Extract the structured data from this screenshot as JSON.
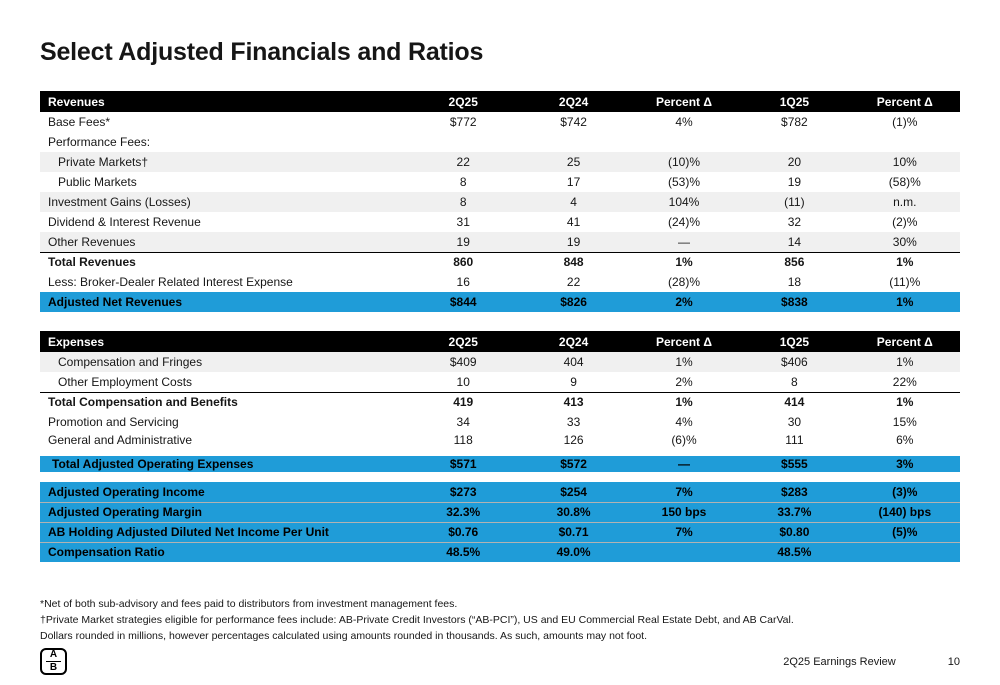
{
  "title": "Select Adjusted Financials and Ratios",
  "colors": {
    "accent_blue": "#1f9cd8",
    "header_black": "#000000",
    "row_shade": "#f0f0f0"
  },
  "tables": {
    "revenues": {
      "headers": [
        "Revenues",
        "2Q25",
        "2Q24",
        "Percent Δ",
        "1Q25",
        "Percent Δ"
      ],
      "rows": [
        {
          "label": "Base Fees*",
          "values": [
            "$772",
            "$742",
            "4%",
            "$782",
            "(1)%"
          ],
          "style": ""
        },
        {
          "label": "Performance Fees:",
          "values": [
            "",
            "",
            "",
            "",
            ""
          ],
          "style": ""
        },
        {
          "label": "Private Markets†",
          "values": [
            "22",
            "25",
            "(10)%",
            "20",
            "10%"
          ],
          "style": "indent shaded"
        },
        {
          "label": "Public Markets",
          "values": [
            "8",
            "17",
            "(53)%",
            "19",
            "(58)%"
          ],
          "style": "indent"
        },
        {
          "label": "Investment Gains (Losses)",
          "values": [
            "8",
            "4",
            "104%",
            "(11)",
            "n.m."
          ],
          "style": "shaded"
        },
        {
          "label": "Dividend & Interest Revenue",
          "values": [
            "31",
            "41",
            "(24)%",
            "32",
            "(2)%"
          ],
          "style": ""
        },
        {
          "label": "Other Revenues",
          "values": [
            "19",
            "19",
            "—",
            "14",
            "30%"
          ],
          "style": "shaded"
        },
        {
          "label": "Total Revenues",
          "values": [
            "860",
            "848",
            "1%",
            "856",
            "1%"
          ],
          "style": "bold topline"
        },
        {
          "label": "Less: Broker-Dealer Related Interest Expense",
          "values": [
            "16",
            "22",
            "(28)%",
            "18",
            "(11)%"
          ],
          "style": ""
        },
        {
          "label": "Adjusted Net Revenues",
          "values": [
            "$844",
            "$826",
            "2%",
            "$838",
            "1%"
          ],
          "style": "highlight"
        }
      ]
    },
    "expenses": {
      "headers": [
        "Expenses",
        "2Q25",
        "2Q24",
        "Percent Δ",
        "1Q25",
        "Percent Δ"
      ],
      "rows": [
        {
          "label": "Compensation and Fringes",
          "values": [
            "$409",
            "404",
            "1%",
            "$406",
            "1%"
          ],
          "style": "indent shaded"
        },
        {
          "label": "Other Employment Costs",
          "values": [
            "10",
            "9",
            "2%",
            "8",
            "22%"
          ],
          "style": "indent"
        },
        {
          "label": "Total Compensation and Benefits",
          "values": [
            "419",
            "413",
            "1%",
            "414",
            "1%"
          ],
          "style": "bold topline"
        },
        {
          "label": "Promotion and Servicing",
          "values": [
            "34",
            "33",
            "4%",
            "30",
            "15%"
          ],
          "style": ""
        },
        {
          "label": "General and Administrative",
          "values": [
            "118",
            "126",
            "(6)%",
            "111",
            "6%"
          ],
          "style": ""
        },
        {
          "label": "Total Adjusted Operating Expenses",
          "values": [
            "$571",
            "$572",
            "—",
            "$555",
            "3%"
          ],
          "style": "highlight gap-above slight-indent"
        }
      ]
    },
    "summary": {
      "rows": [
        {
          "label": "Adjusted Operating Income",
          "values": [
            "$273",
            "$254",
            "7%",
            "$283",
            "(3)%"
          ],
          "style": "highlight"
        },
        {
          "label": "Adjusted Operating Margin",
          "values": [
            "32.3%",
            "30.8%",
            "150 bps",
            "33.7%",
            "(140) bps"
          ],
          "style": "highlight"
        },
        {
          "label": "AB Holding Adjusted Diluted Net Income Per Unit",
          "values": [
            "$0.76",
            "$0.71",
            "7%",
            "$0.80",
            "(5)%"
          ],
          "style": "highlight"
        },
        {
          "label": "Compensation Ratio",
          "values": [
            "48.5%",
            "49.0%",
            "",
            "48.5%",
            ""
          ],
          "style": "highlight"
        }
      ]
    }
  },
  "footnotes": [
    "*Net of both sub-advisory and fees paid to distributors from investment management fees.",
    "†Private Market strategies eligible for performance fees include: AB-Private Credit Investors (“AB-PCI”), US and EU Commercial Real Estate Debt, and AB CarVal.",
    "Dollars rounded in millions, however percentages calculated using amounts rounded in thousands. As such, amounts may not foot."
  ],
  "footer": {
    "logo_top": "A",
    "logo_bottom": "B",
    "review_label": "2Q25 Earnings Review",
    "page_number": "10"
  }
}
